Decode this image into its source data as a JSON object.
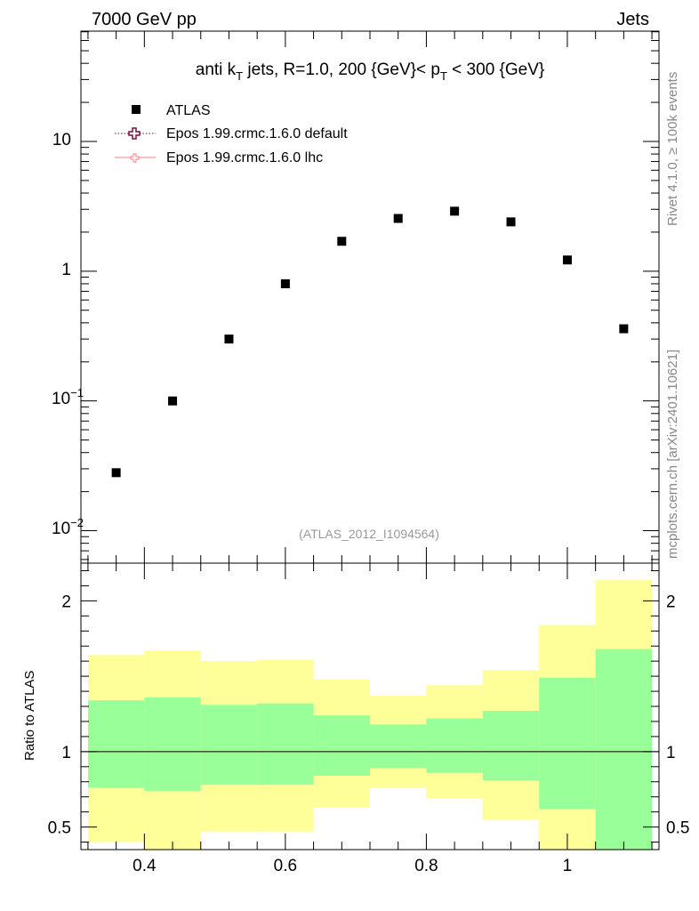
{
  "header": {
    "left": "7000 GeV pp",
    "right": "Jets"
  },
  "side_labels": {
    "rivet": "Rivet 4.1.0, ≥ 100k events",
    "mcplots": "mcplots.cern.ch [arXiv:2401.10621]"
  },
  "chart_data": [
    {
      "type": "scatter",
      "title": "anti k_T jets, R=1.0,  200 {GeV}< p_T < 300 {GeV}",
      "title_parts": {
        "a": "anti k",
        "a_sub": "T",
        "b": " jets, R=1.0,  200 {GeV}< p",
        "b_sub": "T",
        "c": " < 300 {GeV}"
      },
      "analysis_label": "(ATLAS_2012_I1094564)",
      "yscale": "log",
      "xlim": [
        0.31,
        1.13
      ],
      "ylim_exp": [
        -2.25,
        1.85
      ],
      "ytick_labels": [
        {
          "exp": -2,
          "base": "10",
          "sup": "−2"
        },
        {
          "exp": -1,
          "base": "10",
          "sup": "−1"
        },
        {
          "exp": 0,
          "label": "1"
        },
        {
          "exp": 1,
          "label": "10"
        }
      ],
      "legend": {
        "position": "top-left",
        "entries": [
          {
            "label": "ATLAS",
            "marker": "square",
            "color": "#000000"
          },
          {
            "label": "Epos 1.99.crmc.1.6.0 default",
            "marker": "open-cross",
            "color": "#7b0f3c",
            "line": "dotted"
          },
          {
            "label": "Epos 1.99.crmc.1.6.0 lhc",
            "marker": "open-cross-small",
            "color": "#f08080",
            "line": "solid"
          }
        ]
      },
      "series": [
        {
          "name": "ATLAS",
          "x": [
            0.36,
            0.44,
            0.52,
            0.6,
            0.68,
            0.76,
            0.84,
            0.92,
            1.0,
            1.08
          ],
          "y": [
            0.028,
            0.1,
            0.3,
            0.8,
            1.7,
            2.55,
            2.9,
            2.4,
            1.22,
            0.36
          ]
        }
      ]
    },
    {
      "type": "area",
      "ylabel": "Ratio to ATLAS",
      "xlim": [
        0.31,
        1.13
      ],
      "ylim": [
        0.35,
        2.25
      ],
      "x_ticks": [
        0.4,
        0.6,
        0.8,
        1.0
      ],
      "x_tick_labels": [
        "0.4",
        "0.6",
        "0.8",
        "1"
      ],
      "y_ticks": [
        0.5,
        1,
        2
      ],
      "y_tick_labels": [
        "0.5",
        "1",
        "2"
      ],
      "reference_line": 1,
      "bin_edges": [
        0.32,
        0.4,
        0.48,
        0.56,
        0.64,
        0.72,
        0.8,
        0.88,
        0.96,
        1.04,
        1.12
      ],
      "bands": [
        {
          "name": "outer uncertainty",
          "color": "#ffff99",
          "low": [
            0.4,
            0.3,
            0.47,
            0.47,
            0.63,
            0.76,
            0.69,
            0.55,
            0.3,
            0.3
          ],
          "high": [
            1.64,
            1.67,
            1.6,
            1.61,
            1.48,
            1.37,
            1.44,
            1.54,
            1.84,
            2.14
          ]
        },
        {
          "name": "inner uncertainty",
          "color": "#99ff99",
          "low": [
            0.76,
            0.74,
            0.78,
            0.78,
            0.84,
            0.89,
            0.86,
            0.81,
            0.62,
            0.3
          ],
          "high": [
            1.34,
            1.36,
            1.31,
            1.32,
            1.24,
            1.18,
            1.22,
            1.27,
            1.49,
            1.68
          ]
        }
      ]
    }
  ]
}
